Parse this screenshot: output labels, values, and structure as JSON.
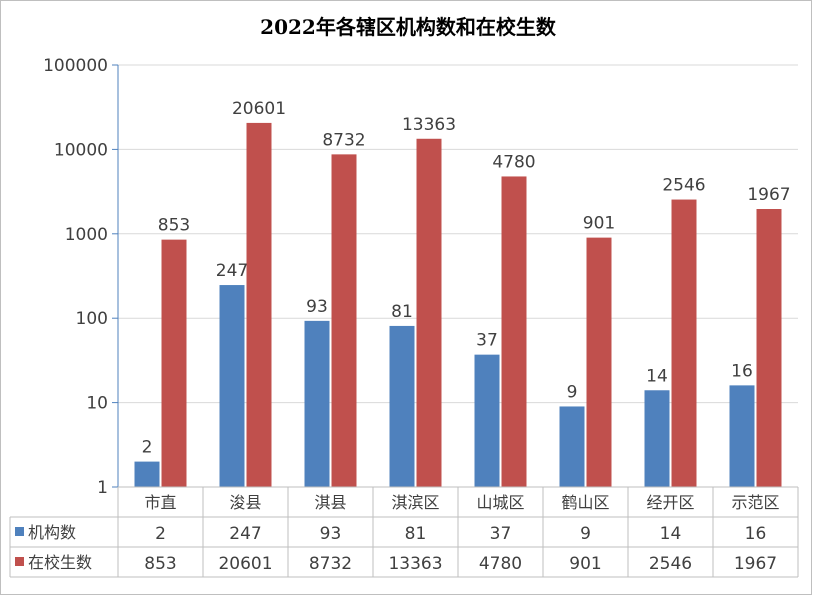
{
  "chart_data": {
    "type": "bar",
    "title": "2022年各辖区机构数和在校生数",
    "scale": "log",
    "ylim": [
      1,
      100000
    ],
    "yticks": [
      "1",
      "10",
      "100",
      "1000",
      "10000",
      "100000"
    ],
    "grid": true,
    "legend": "data-table",
    "categories": [
      "市直",
      "浚县",
      "淇县",
      "淇滨区",
      "山城区",
      "鹤山区",
      "经开区",
      "示范区"
    ],
    "series": [
      {
        "name": "机构数",
        "color": "#4f81bd",
        "values": [
          2,
          247,
          93,
          81,
          37,
          9,
          14,
          16
        ]
      },
      {
        "name": "在校生数",
        "color": "#c0504d",
        "values": [
          853,
          20601,
          8732,
          13363,
          4780,
          901,
          2546,
          1967
        ]
      }
    ]
  }
}
